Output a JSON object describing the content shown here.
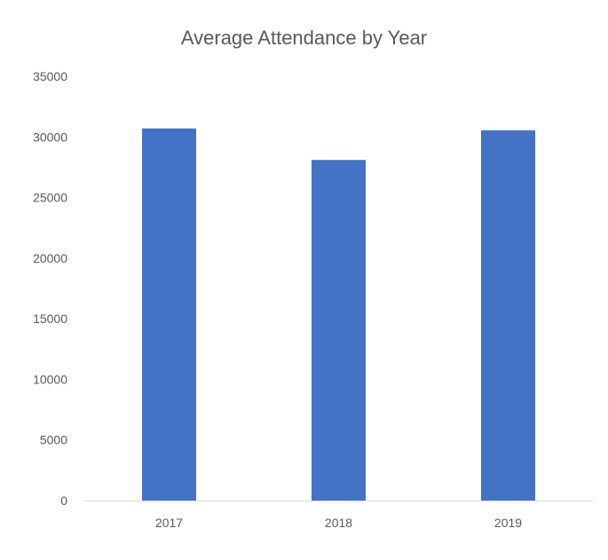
{
  "chart_data": {
    "type": "bar",
    "title": "Average Attendance by Year",
    "categories": [
      "2017",
      "2018",
      "2019"
    ],
    "values": [
      30700,
      28100,
      30550
    ],
    "xlabel": "",
    "ylabel": "",
    "ylim": [
      0,
      35000
    ],
    "yticks": [
      0,
      5000,
      10000,
      15000,
      20000,
      25000,
      30000,
      35000
    ],
    "ytick_labels": [
      "0",
      "5000",
      "10000",
      "15000",
      "20000",
      "25000",
      "30000",
      "35000"
    ],
    "grid": false,
    "legend": "none",
    "bar_color": "#4472C4",
    "axis_color": "#D9D9D9",
    "text_color": "#595959"
  }
}
